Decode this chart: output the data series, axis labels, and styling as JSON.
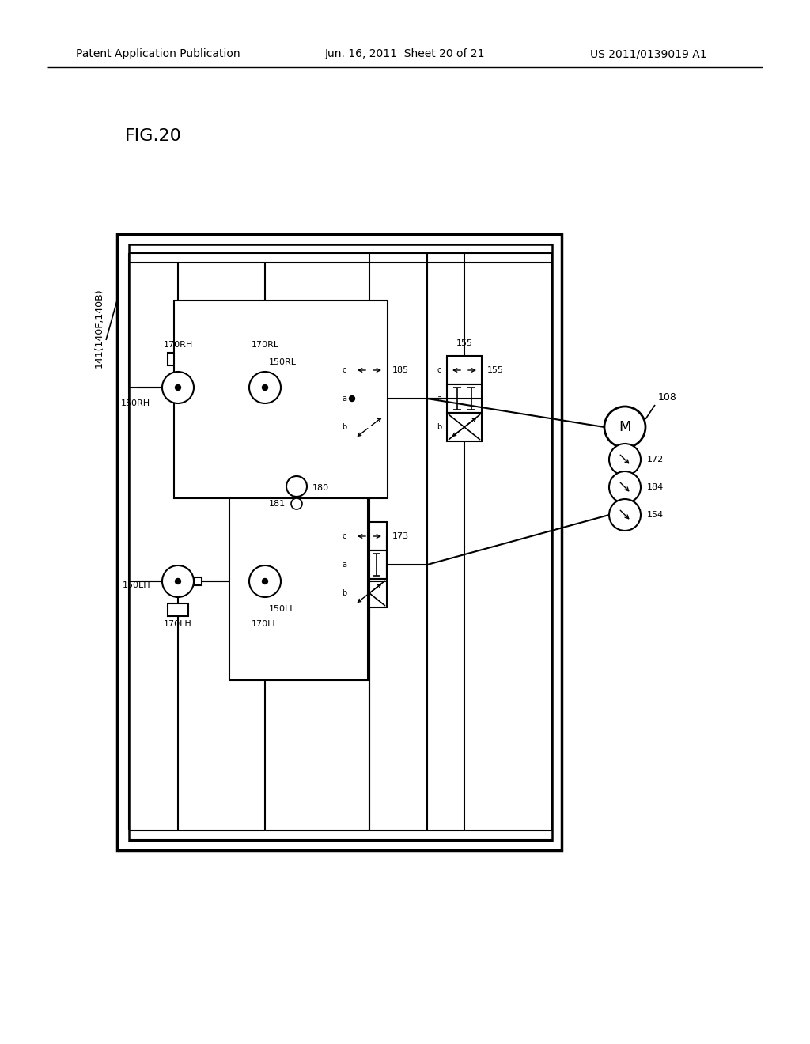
{
  "header_left": "Patent Application Publication",
  "header_center": "Jun. 16, 2011  Sheet 20 of 21",
  "header_right": "US 2011/0139019 A1",
  "bg_color": "#ffffff",
  "fig_label": "FIG.20",
  "label_141": "141(140F,140B)",
  "label_150RH": "150RH",
  "label_150RL": "150RL",
  "label_150LH": "150LH",
  "label_150LL": "150LL",
  "label_170RH": "170RH",
  "label_170RL": "170RL",
  "label_170LH": "170LH",
  "label_170LL": "170LL",
  "label_180": "180",
  "label_181": "181",
  "label_185": "185",
  "label_173": "173",
  "label_155": "155",
  "label_108": "108",
  "label_172": "172",
  "label_184": "184",
  "label_154": "154"
}
